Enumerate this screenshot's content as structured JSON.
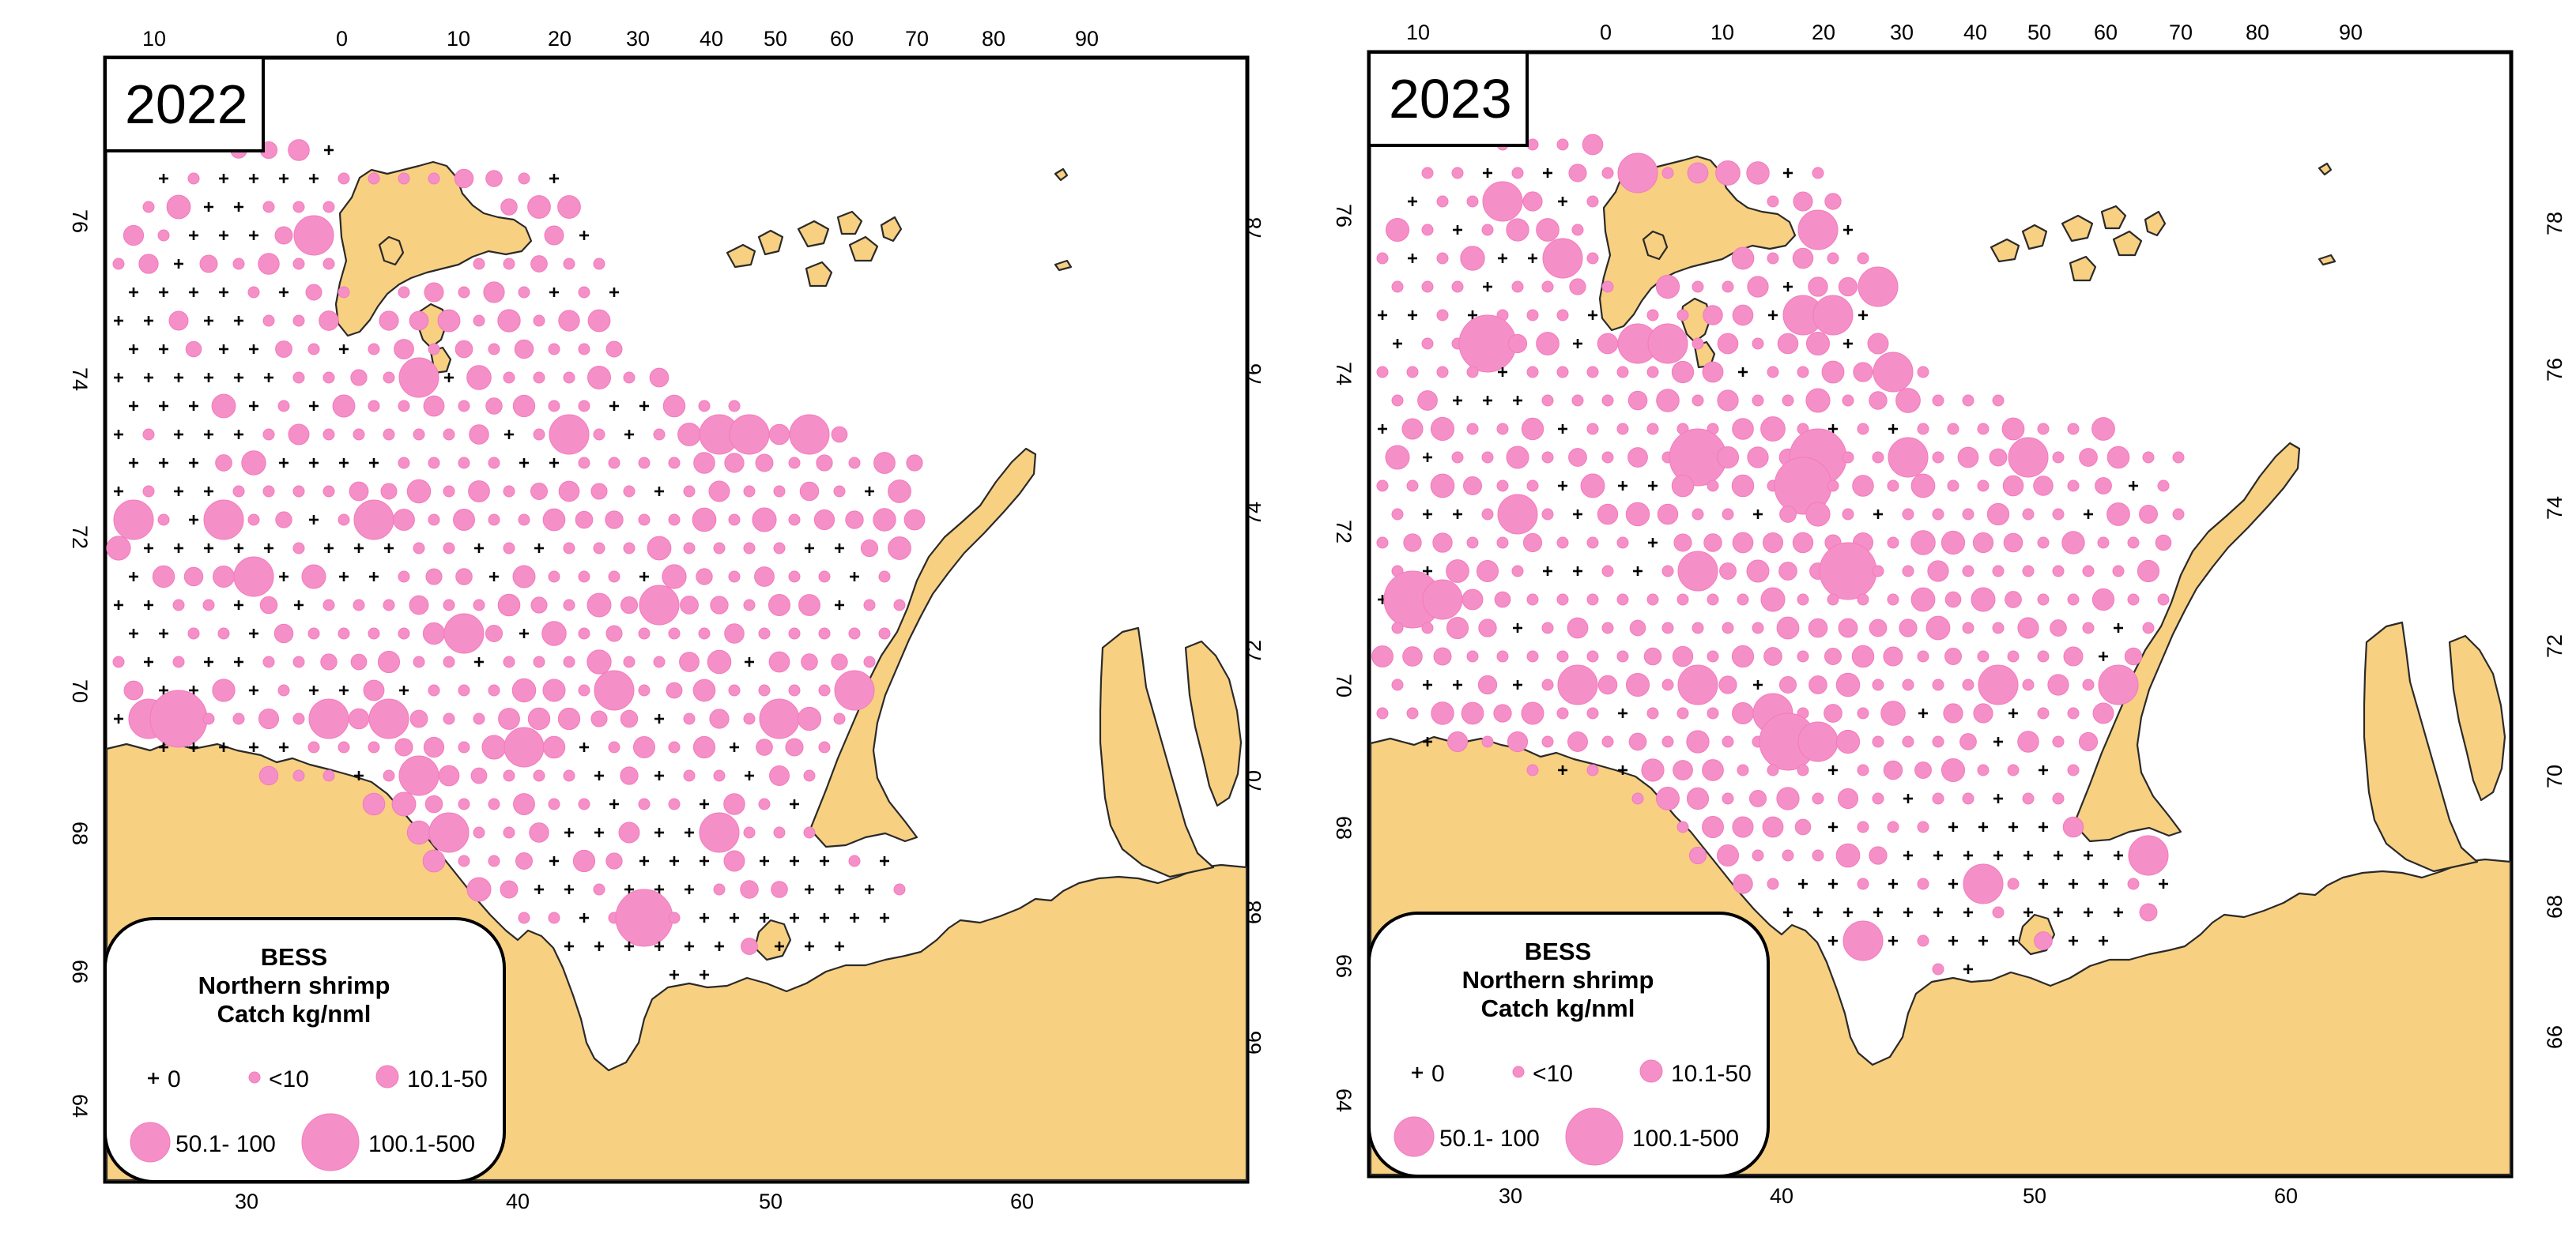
{
  "panels": [
    {
      "year": "2022",
      "legend": {
        "title_lines": [
          "BESS",
          "Northern shrimp",
          "Catch kg/nml"
        ],
        "classes": [
          "0",
          "<10",
          "10.1-50",
          "50.1- 100",
          "100.1-500"
        ]
      },
      "top_ticks": [
        "10",
        "0",
        "10",
        "20",
        "30",
        "40",
        "50",
        "60",
        "70",
        "80",
        "90"
      ],
      "bottom_ticks": [
        "30",
        "40",
        "50",
        "60"
      ],
      "left_ticks": [
        "76",
        "74",
        "72",
        "70",
        "68",
        "66",
        "64"
      ],
      "right_ticks": [
        "78",
        "76",
        "74",
        "72",
        "70",
        "68",
        "66"
      ]
    },
    {
      "year": "2023",
      "legend": {
        "title_lines": [
          "BESS",
          "Northern shrimp",
          "Catch kg/nml"
        ],
        "classes": [
          "0",
          "<10",
          "10.1-50",
          "50.1- 100",
          "100.1-500"
        ]
      },
      "top_ticks": [
        "10",
        "0",
        "10",
        "20",
        "30",
        "40",
        "50",
        "60",
        "70",
        "80",
        "90"
      ],
      "bottom_ticks": [
        "30",
        "40",
        "50",
        "60"
      ],
      "left_ticks": [
        "76",
        "74",
        "72",
        "70",
        "68",
        "66",
        "64"
      ],
      "right_ticks": [
        "78",
        "76",
        "74",
        "72",
        "70",
        "68",
        "66"
      ]
    }
  ],
  "colors": {
    "land": "#f8d082",
    "catch_dot": "#f58fc8",
    "sea": "#ffffff"
  },
  "catch_classes": [
    "0",
    "<10",
    "10.1-50",
    "50.1- 100",
    "100.1-500"
  ]
}
